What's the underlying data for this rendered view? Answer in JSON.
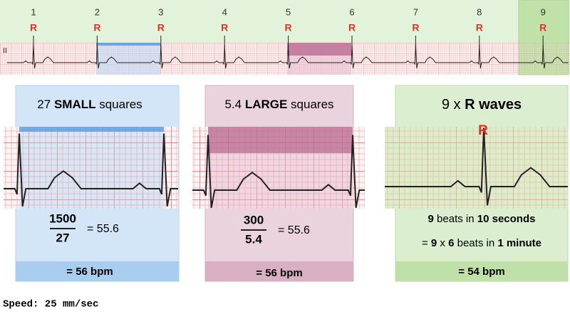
{
  "strip": {
    "lead": "II",
    "beats": [
      {
        "number": "1",
        "label": "R"
      },
      {
        "number": "2",
        "label": "R"
      },
      {
        "number": "3",
        "label": "R"
      },
      {
        "number": "4",
        "label": "R"
      },
      {
        "number": "5",
        "label": "R"
      },
      {
        "number": "6",
        "label": "R"
      },
      {
        "number": "7",
        "label": "R"
      },
      {
        "number": "8",
        "label": "R"
      },
      {
        "number": "9",
        "label": "R"
      }
    ]
  },
  "panels": [
    {
      "title": [
        "27 ",
        "SMALL",
        " squares"
      ],
      "numerator": "1500",
      "denominator": "27",
      "result": "= 55.6",
      "answer": "= 56 bpm"
    },
    {
      "title": [
        "5.4 ",
        "LARGE",
        " squares"
      ],
      "numerator": "300",
      "denominator": "5.4",
      "result": "= 55.6",
      "answer": "= 56 bpm"
    },
    {
      "title": [
        "9 x ",
        "R waves"
      ],
      "marker": "R",
      "lines": [
        [
          "9",
          " beats in ",
          "10 seconds"
        ],
        [
          "= ",
          "9",
          " x ",
          "6",
          " beats in ",
          "1 minute"
        ]
      ],
      "answer": "= 54 bpm"
    }
  ],
  "footer": "Speed: 25 mm/sec"
}
